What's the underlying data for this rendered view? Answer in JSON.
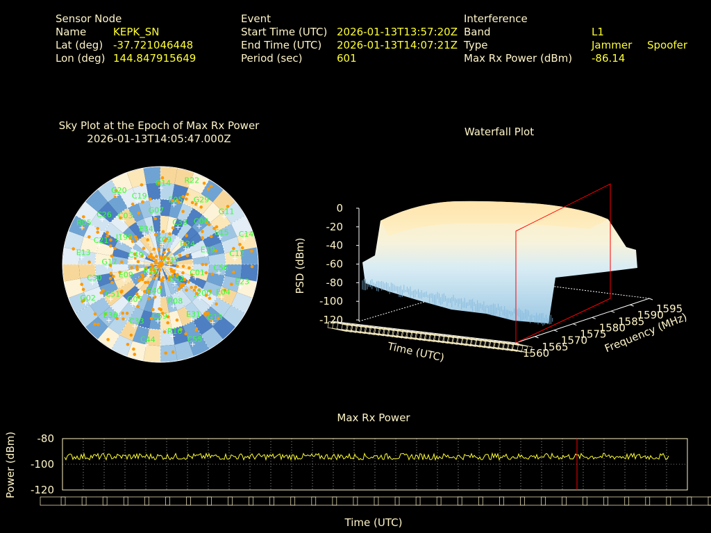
{
  "header": {
    "sensor": {
      "heading": "Sensor Node",
      "name_label": "Name",
      "name": "KEPK_SN",
      "lat_label": "Lat (deg)",
      "lat": "-37.721046448",
      "lon_label": "Lon (deg)",
      "lon": "144.847915649"
    },
    "event": {
      "heading": "Event",
      "start_label": "Start Time (UTC)",
      "start": "2026-01-13T13:57:20Z",
      "end_label": "End Time (UTC)",
      "end": "2026-01-13T14:07:21Z",
      "period_label": "Period (sec)",
      "period": "601"
    },
    "interference": {
      "heading": "Interference",
      "band_label": "Band",
      "band": "L1",
      "type_label": "Type",
      "type_values": [
        "Jammer",
        "Spoofer"
      ],
      "power_label": "Max Rx Power (dBm)",
      "power": "-86.14"
    }
  },
  "colors": {
    "background": "#000000",
    "label_text": "#fff5c8",
    "value_text": "#ffff33",
    "sat_label": "#33ff33",
    "sat_marker": "#ff9900",
    "power_line": "#ffff33",
    "marker_line": "#ff0000"
  },
  "chart_data": [
    {
      "type": "scatter",
      "title": "Sky Plot at the Epoch of Max Rx Power",
      "subtitle": "2026-01-13T14:05:47.000Z",
      "satellites": [
        "C35",
        "R15",
        "C09",
        "C42",
        "C49",
        "R24",
        "C40",
        "E34",
        "C01",
        "E09",
        "C38",
        "R08",
        "J199",
        "E19",
        "G05",
        "G07",
        "J200",
        "G17",
        "C06",
        "C59",
        "C03",
        "C56",
        "C51",
        "E05",
        "E31",
        "C21",
        "E15",
        "C33",
        "C19",
        "E04",
        "C30",
        "G29",
        "R16",
        "C26",
        "C12",
        "E36",
        "G14",
        "G13",
        "E13",
        "G11",
        "C44",
        "G20",
        "E23",
        "G02",
        "R22",
        "C55",
        "R05",
        "C14"
      ]
    },
    {
      "type": "area",
      "title": "Waterfall Plot",
      "zlabel": "PSD (dBm)",
      "xlabel": "Time (UTC)",
      "ylabel": "Frequency (MHz)",
      "z_ticks": [
        "0",
        "-20",
        "-40",
        "-60",
        "-80",
        "-100",
        "-120"
      ],
      "y_ticks": [
        "1560",
        "1565",
        "1570",
        "1575",
        "1580",
        "1585",
        "1590",
        "1595"
      ],
      "zlim": [
        -120,
        0
      ],
      "ylim": [
        1560,
        1595
      ]
    },
    {
      "type": "line",
      "title": "Max Rx Power",
      "xlabel": "Time (UTC)",
      "ylabel": "Power (dBm)",
      "y_ticks": [
        "-80",
        "-100",
        "-120"
      ],
      "ylim": [
        -120,
        -80
      ],
      "baseline_dbm": -94,
      "noise_amplitude_dbm": 2.5,
      "max_power_time": "14:05:47",
      "max_power_dbm": -86.14,
      "grid": true
    }
  ]
}
